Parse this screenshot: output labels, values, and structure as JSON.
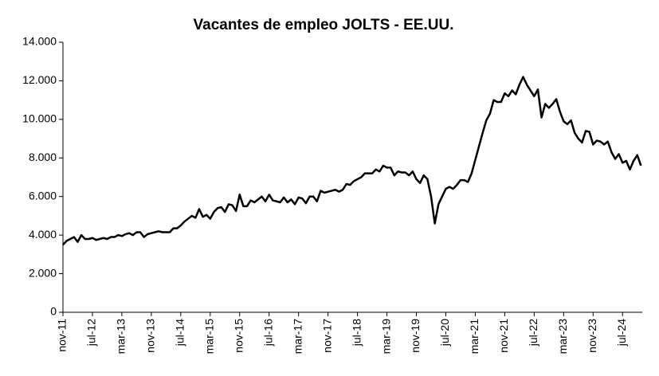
{
  "chart_data": {
    "type": "line",
    "title": "Vacantes de empleo JOLTS - EE.UU.",
    "categories": [
      "nov-11",
      null,
      null,
      null,
      null,
      null,
      null,
      null,
      "jul-12",
      null,
      null,
      null,
      null,
      null,
      null,
      null,
      "mar-13",
      null,
      null,
      null,
      null,
      null,
      null,
      null,
      "nov-13",
      null,
      null,
      null,
      null,
      null,
      null,
      null,
      "jul-14",
      null,
      null,
      null,
      null,
      null,
      null,
      null,
      "mar-15",
      null,
      null,
      null,
      null,
      null,
      null,
      null,
      "nov-15",
      null,
      null,
      null,
      null,
      null,
      null,
      null,
      "jul-16",
      null,
      null,
      null,
      null,
      null,
      null,
      null,
      "mar-17",
      null,
      null,
      null,
      null,
      null,
      null,
      null,
      "nov-17",
      null,
      null,
      null,
      null,
      null,
      null,
      null,
      "jul-18",
      null,
      null,
      null,
      null,
      null,
      null,
      null,
      "mar-19",
      null,
      null,
      null,
      null,
      null,
      null,
      null,
      "nov-19",
      null,
      null,
      null,
      null,
      null,
      null,
      null,
      "jul-20",
      null,
      null,
      null,
      null,
      null,
      null,
      null,
      "mar-21",
      null,
      null,
      null,
      null,
      null,
      null,
      null,
      "nov-21",
      null,
      null,
      null,
      null,
      null,
      null,
      null,
      "jul-22",
      null,
      null,
      null,
      null,
      null,
      null,
      null,
      "mar-23",
      null,
      null,
      null,
      null,
      null,
      null,
      null,
      "nov-23",
      null,
      null,
      null,
      null,
      null,
      null,
      null,
      "jul-24",
      null,
      null,
      null,
      null,
      null
    ],
    "values": [
      3500,
      3700,
      3800,
      3900,
      3650,
      4000,
      3800,
      3800,
      3850,
      3750,
      3800,
      3850,
      3800,
      3900,
      3900,
      4000,
      3950,
      4050,
      4100,
      4000,
      4150,
      4150,
      3900,
      4050,
      4100,
      4150,
      4200,
      4150,
      4150,
      4150,
      4350,
      4350,
      4500,
      4700,
      4850,
      5000,
      4900,
      5350,
      4950,
      5050,
      4850,
      5200,
      5400,
      5450,
      5200,
      5600,
      5550,
      5250,
      6100,
      5500,
      5500,
      5800,
      5700,
      5850,
      6000,
      5750,
      6100,
      5800,
      5750,
      5700,
      5950,
      5700,
      5850,
      5600,
      5950,
      5900,
      5650,
      6000,
      6000,
      5750,
      6300,
      6200,
      6250,
      6300,
      6350,
      6250,
      6350,
      6650,
      6600,
      6800,
      6900,
      7000,
      7200,
      7200,
      7200,
      7400,
      7300,
      7600,
      7500,
      7500,
      7100,
      7300,
      7250,
      7250,
      7100,
      7300,
      6900,
      6700,
      7100,
      6900,
      6000,
      4600,
      5600,
      6000,
      6400,
      6500,
      6400,
      6600,
      6850,
      6850,
      6750,
      7200,
      7900,
      8600,
      9300,
      9950,
      10300,
      11000,
      10900,
      10900,
      11350,
      11200,
      11500,
      11300,
      11800,
      12200,
      11800,
      11500,
      11200,
      11550,
      10100,
      10800,
      10600,
      10800,
      11050,
      10400,
      9900,
      9750,
      9950,
      9300,
      9000,
      8800,
      9400,
      9350,
      8700,
      8900,
      8850,
      8700,
      8850,
      8300,
      7950,
      8200,
      7750,
      7850,
      7400,
      7850,
      8150,
      7600
    ],
    "color": "#000000",
    "ylim": [
      0,
      14000
    ],
    "yticks": [
      0,
      {
        "value": 2000,
        "label": "2.000"
      },
      {
        "value": 4000,
        "label": "4.000"
      },
      {
        "value": 6000,
        "label": "6.000"
      },
      {
        "value": 8000,
        "label": "8.000"
      },
      {
        "value": 10000,
        "label": "10.000"
      },
      {
        "value": 12000,
        "label": "12.000"
      },
      {
        "value": 14000,
        "label": "14.000"
      }
    ],
    "grid": false
  }
}
